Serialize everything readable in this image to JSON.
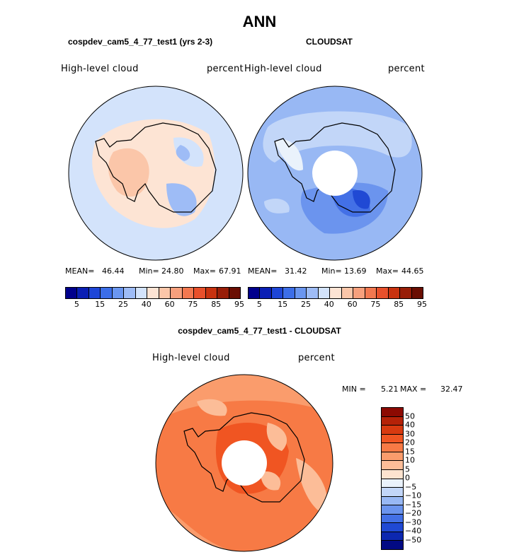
{
  "title": "ANN",
  "panels": [
    {
      "title": "cospdev_cam5_4_77_test1 (yrs 2-3)",
      "left_label": "High-level cloud",
      "right_label": "percent",
      "mean_label": "MEAN=",
      "mean": "46.44",
      "min_label": "Min=",
      "min": "24.80",
      "max_label": "Max=",
      "max": "67.91"
    },
    {
      "title": "CLOUDSAT",
      "left_label": "High-level cloud",
      "right_label": "percent",
      "mean_label": "MEAN=",
      "mean": "31.42",
      "min_label": "Min=",
      "min": "13.69",
      "max_label": "Max=",
      "max": "44.65"
    }
  ],
  "abs_colorbar": {
    "colors": [
      "#00008c",
      "#0a1fb4",
      "#1e46d7",
      "#3c6ee8",
      "#6a96f0",
      "#9ebcf6",
      "#d3e3fb",
      "#fde4d4",
      "#fbc6a9",
      "#f7a07d",
      "#f27850",
      "#e8502b",
      "#c8320f",
      "#981e08",
      "#6a0e02"
    ],
    "ticks": [
      "5",
      "15",
      "25",
      "40",
      "60",
      "75",
      "85",
      "95"
    ]
  },
  "diff_panel": {
    "title": "cospdev_cam5_4_77_test1 - CLOUDSAT",
    "left_label": "High-level cloud",
    "right_label": "percent",
    "min_label": "MIN =",
    "min": "5.21",
    "max_label": "MAX =",
    "max": "32.47"
  },
  "diff_colorbar": {
    "colors": [
      "#8c0a02",
      "#b52208",
      "#d83a10",
      "#f05522",
      "#f77a45",
      "#fa9c6c",
      "#fcbd98",
      "#fde3cf",
      "#eaf2fb",
      "#c2d6f8",
      "#98b8f4",
      "#6b94ee",
      "#4370e6",
      "#2049d4",
      "#0c27b0",
      "#020a84"
    ],
    "ticks": [
      "50",
      "40",
      "30",
      "20",
      "15",
      "10",
      "5",
      "0",
      "−5",
      "−10",
      "−15",
      "−20",
      "−30",
      "−40",
      "−50"
    ]
  }
}
